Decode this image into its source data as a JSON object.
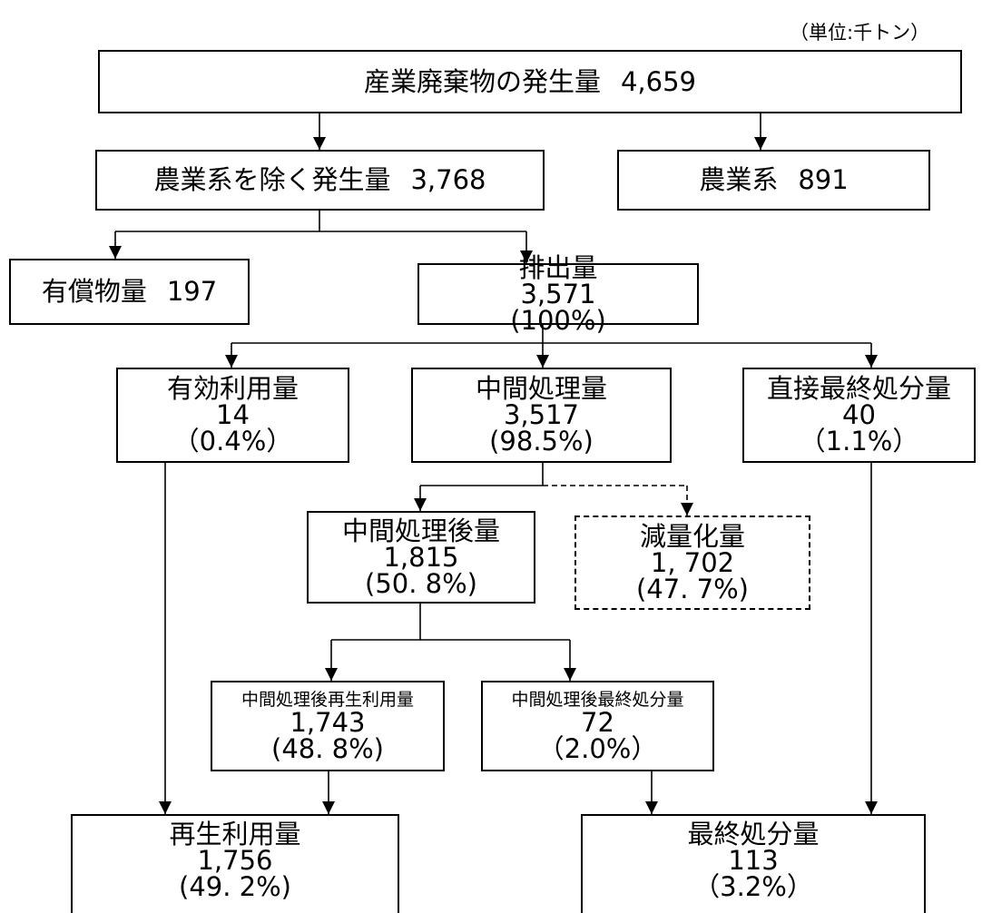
{
  "unit": "（単位:千トン）",
  "nodes": [
    {
      "title": "産業廃棄物の発生量",
      "value": "4,659"
    },
    {
      "title": "農業系を除く発生量",
      "value": "3,768"
    },
    {
      "title": "農業系",
      "value": "891"
    },
    {
      "title": "有償物量",
      "value": "197"
    },
    {
      "title": "排出量",
      "value": "3,571",
      "percent": "(100%)"
    },
    {
      "title": "有効利用量",
      "value": "14",
      "percent": "（0.4%）"
    },
    {
      "title": "中間処理量",
      "value": "3,517",
      "percent": "(98.5%)"
    },
    {
      "title": "直接最終処分量",
      "value": "40",
      "percent": "（1.1%）"
    },
    {
      "title": "中間処理後量",
      "value": "1,815",
      "percent": "(50. 8%)"
    },
    {
      "title": "減量化量",
      "value": "1, 702",
      "percent": "(47. 7%)"
    },
    {
      "title": "中間処理後再生利用量",
      "value": "1,743",
      "percent": "(48. 8%)"
    },
    {
      "title": "中間処理後最終処分量",
      "value": "72",
      "percent": "（2.0%）"
    },
    {
      "title": "再生利用量",
      "value": "1,756",
      "percent": "(49. 2%)"
    },
    {
      "title": "最終処分量",
      "value": "113",
      "percent": "（3.2%）"
    }
  ]
}
